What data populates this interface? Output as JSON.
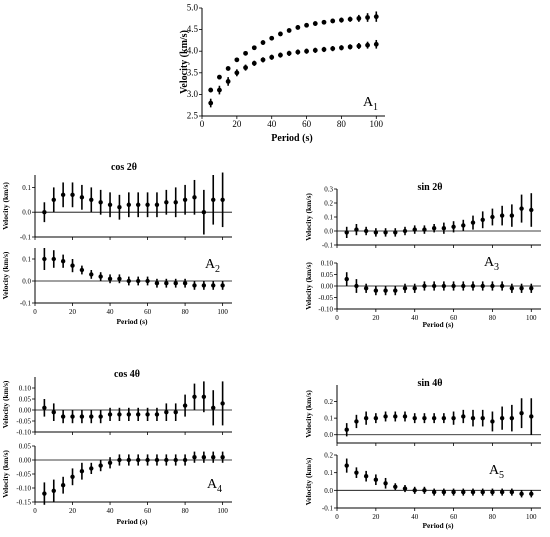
{
  "chart_data": [
    {
      "type": "scatter",
      "id": "A1",
      "title": "",
      "panel_label": "A",
      "panel_sub": "1",
      "xlabel": "Period (s)",
      "ylabel": "Velocity (km/s)",
      "xlim": [
        0,
        105
      ],
      "ylim": [
        2.5,
        5.0
      ],
      "xticks": [
        "0",
        "20",
        "40",
        "60",
        "80",
        "100"
      ],
      "yticks": [
        "2.5",
        "3.0",
        "3.5",
        "4.0",
        "4.5",
        "5.0"
      ],
      "series": [
        {
          "x": [
            5,
            10,
            15,
            20,
            25,
            30,
            35,
            40,
            45,
            50,
            55,
            60,
            65,
            70,
            75,
            80,
            85,
            90,
            95,
            100
          ],
          "y": [
            3.1,
            3.4,
            3.6,
            3.8,
            3.95,
            4.08,
            4.2,
            4.3,
            4.4,
            4.48,
            4.55,
            4.6,
            4.64,
            4.67,
            4.7,
            4.72,
            4.74,
            4.76,
            4.78,
            4.8
          ],
          "err": [
            0.05,
            0.05,
            0.05,
            0.05,
            0.05,
            0.05,
            0.05,
            0.05,
            0.05,
            0.05,
            0.05,
            0.05,
            0.05,
            0.05,
            0.05,
            0.06,
            0.06,
            0.08,
            0.1,
            0.12
          ]
        },
        {
          "x": [
            5,
            10,
            15,
            20,
            25,
            30,
            35,
            40,
            45,
            50,
            55,
            60,
            65,
            70,
            75,
            80,
            85,
            90,
            95,
            100
          ],
          "y": [
            2.8,
            3.1,
            3.3,
            3.5,
            3.62,
            3.72,
            3.8,
            3.86,
            3.91,
            3.95,
            3.98,
            4.0,
            4.02,
            4.04,
            4.06,
            4.08,
            4.1,
            4.12,
            4.14,
            4.16
          ],
          "err": [
            0.1,
            0.1,
            0.1,
            0.08,
            0.07,
            0.06,
            0.06,
            0.06,
            0.06,
            0.06,
            0.06,
            0.06,
            0.06,
            0.06,
            0.06,
            0.06,
            0.06,
            0.07,
            0.08,
            0.1
          ]
        }
      ]
    },
    {
      "type": "scatter",
      "id": "A2",
      "title": "cos 2θ",
      "panel_label": "A",
      "panel_sub": "2",
      "xlabel": "Period (s)",
      "ylabel": "Velocity (km/s)",
      "xlim": [
        0,
        105
      ],
      "xticks": [
        "0",
        "20",
        "40",
        "60",
        "80",
        "100"
      ],
      "top": {
        "ylim": [
          -0.1,
          0.15
        ],
        "yticks": [
          "-0.1",
          "0.0",
          "0.1"
        ],
        "x": [
          5,
          10,
          15,
          20,
          25,
          30,
          35,
          40,
          45,
          50,
          55,
          60,
          65,
          70,
          75,
          80,
          85,
          90,
          95,
          100
        ],
        "y": [
          0.0,
          0.05,
          0.07,
          0.07,
          0.06,
          0.05,
          0.04,
          0.03,
          0.02,
          0.03,
          0.03,
          0.03,
          0.03,
          0.04,
          0.04,
          0.05,
          0.06,
          0.0,
          0.05,
          0.05
        ],
        "err": [
          0.04,
          0.05,
          0.05,
          0.05,
          0.05,
          0.05,
          0.05,
          0.05,
          0.05,
          0.05,
          0.05,
          0.05,
          0.05,
          0.05,
          0.06,
          0.06,
          0.07,
          0.09,
          0.1,
          0.11
        ]
      },
      "bottom": {
        "ylim": [
          -0.1,
          0.15
        ],
        "yticks": [
          "-0.1",
          "0.0",
          "0.1"
        ],
        "x": [
          5,
          10,
          15,
          20,
          25,
          30,
          35,
          40,
          45,
          50,
          55,
          60,
          65,
          70,
          75,
          80,
          85,
          90,
          95,
          100
        ],
        "y": [
          0.1,
          0.1,
          0.09,
          0.07,
          0.05,
          0.03,
          0.02,
          0.01,
          0.01,
          0.0,
          0.0,
          0.0,
          -0.01,
          -0.01,
          -0.01,
          -0.01,
          -0.02,
          -0.02,
          -0.02,
          -0.02
        ],
        "err": [
          0.05,
          0.04,
          0.03,
          0.03,
          0.02,
          0.02,
          0.02,
          0.02,
          0.02,
          0.02,
          0.02,
          0.02,
          0.02,
          0.02,
          0.02,
          0.02,
          0.02,
          0.02,
          0.02,
          0.02
        ]
      }
    },
    {
      "type": "scatter",
      "id": "A3",
      "title": "sin 2θ",
      "panel_label": "A",
      "panel_sub": "3",
      "xlabel": "Period (s)",
      "ylabel": "Velocity (km/s)",
      "xlim": [
        0,
        105
      ],
      "xticks": [
        "0",
        "20",
        "40",
        "60",
        "80",
        "100"
      ],
      "top": {
        "ylim": [
          -0.1,
          0.3
        ],
        "yticks": [
          "-0.1",
          "0.0",
          "0.1",
          "0.2",
          "0.3"
        ],
        "x": [
          5,
          10,
          15,
          20,
          25,
          30,
          35,
          40,
          45,
          50,
          55,
          60,
          65,
          70,
          75,
          80,
          85,
          90,
          95,
          100
        ],
        "y": [
          -0.01,
          0.01,
          0.0,
          -0.01,
          -0.01,
          -0.01,
          0.0,
          0.01,
          0.01,
          0.02,
          0.02,
          0.03,
          0.04,
          0.06,
          0.08,
          0.1,
          0.11,
          0.11,
          0.16,
          0.15
        ],
        "err": [
          0.04,
          0.04,
          0.03,
          0.03,
          0.03,
          0.03,
          0.03,
          0.03,
          0.03,
          0.03,
          0.04,
          0.04,
          0.04,
          0.05,
          0.06,
          0.06,
          0.07,
          0.08,
          0.1,
          0.12
        ]
      },
      "bottom": {
        "ylim": [
          -0.1,
          0.1
        ],
        "yticks": [
          "-0.10",
          "-0.05",
          "0.00",
          "0.05",
          "0.10"
        ],
        "x": [
          5,
          10,
          15,
          20,
          25,
          30,
          35,
          40,
          45,
          50,
          55,
          60,
          65,
          70,
          75,
          80,
          85,
          90,
          95,
          100
        ],
        "y": [
          0.03,
          0.0,
          -0.01,
          -0.02,
          -0.02,
          -0.02,
          -0.01,
          -0.01,
          0.0,
          0.0,
          0.0,
          0.0,
          0.0,
          0.0,
          0.0,
          0.0,
          0.0,
          -0.01,
          -0.01,
          -0.01
        ],
        "err": [
          0.03,
          0.03,
          0.02,
          0.02,
          0.02,
          0.02,
          0.02,
          0.02,
          0.02,
          0.02,
          0.02,
          0.02,
          0.02,
          0.02,
          0.02,
          0.02,
          0.02,
          0.02,
          0.02,
          0.02
        ]
      }
    },
    {
      "type": "scatter",
      "id": "A4",
      "title": "cos 4θ",
      "panel_label": "A",
      "panel_sub": "4",
      "xlabel": "Period (s)",
      "ylabel": "Velocity (km/s)",
      "xlim": [
        0,
        105
      ],
      "xticks": [
        "0",
        "20",
        "40",
        "60",
        "80",
        "100"
      ],
      "top": {
        "ylim": [
          -0.1,
          0.15
        ],
        "yticks": [
          "-0.10",
          "-0.05",
          "0.00",
          "0.05",
          "0.10"
        ],
        "x": [
          5,
          10,
          15,
          20,
          25,
          30,
          35,
          40,
          45,
          50,
          55,
          60,
          65,
          70,
          75,
          80,
          85,
          90,
          95,
          100
        ],
        "y": [
          0.01,
          -0.01,
          -0.03,
          -0.03,
          -0.03,
          -0.03,
          -0.03,
          -0.02,
          -0.02,
          -0.02,
          -0.02,
          -0.02,
          -0.02,
          -0.01,
          -0.01,
          0.02,
          0.06,
          0.06,
          0.01,
          0.03
        ],
        "err": [
          0.04,
          0.04,
          0.03,
          0.03,
          0.03,
          0.03,
          0.03,
          0.03,
          0.03,
          0.03,
          0.03,
          0.03,
          0.03,
          0.04,
          0.04,
          0.05,
          0.06,
          0.07,
          0.08,
          0.1
        ]
      },
      "bottom": {
        "ylim": [
          -0.15,
          0.05
        ],
        "yticks": [
          "-0.15",
          "-0.10",
          "-0.05",
          "0.00",
          "0.05"
        ],
        "x": [
          5,
          10,
          15,
          20,
          25,
          30,
          35,
          40,
          45,
          50,
          55,
          60,
          65,
          70,
          75,
          80,
          85,
          90,
          95,
          100
        ],
        "y": [
          -0.12,
          -0.11,
          -0.09,
          -0.06,
          -0.04,
          -0.03,
          -0.02,
          -0.01,
          0.0,
          0.0,
          0.0,
          0.0,
          0.0,
          0.0,
          0.0,
          0.0,
          0.01,
          0.01,
          0.01,
          0.01
        ],
        "err": [
          0.04,
          0.04,
          0.03,
          0.03,
          0.03,
          0.02,
          0.02,
          0.02,
          0.02,
          0.02,
          0.02,
          0.02,
          0.02,
          0.02,
          0.02,
          0.02,
          0.02,
          0.02,
          0.02,
          0.02
        ]
      }
    },
    {
      "type": "scatter",
      "id": "A5",
      "title": "sin 4θ",
      "panel_label": "A",
      "panel_sub": "5",
      "xlabel": "Period (s)",
      "ylabel": "Velocity (km/s)",
      "xlim": [
        0,
        105
      ],
      "xticks": [
        "0",
        "20",
        "40",
        "60",
        "80",
        "100"
      ],
      "top": {
        "ylim": [
          -0.05,
          0.3
        ],
        "yticks": [
          "0.0",
          "0.1",
          "0.2"
        ],
        "x": [
          5,
          10,
          15,
          20,
          25,
          30,
          35,
          40,
          45,
          50,
          55,
          60,
          65,
          70,
          75,
          80,
          85,
          90,
          95,
          100
        ],
        "y": [
          0.03,
          0.08,
          0.1,
          0.1,
          0.11,
          0.11,
          0.11,
          0.1,
          0.1,
          0.1,
          0.1,
          0.1,
          0.11,
          0.1,
          0.1,
          0.08,
          0.1,
          0.1,
          0.13,
          0.11
        ],
        "err": [
          0.04,
          0.04,
          0.04,
          0.03,
          0.03,
          0.03,
          0.03,
          0.03,
          0.03,
          0.03,
          0.03,
          0.04,
          0.04,
          0.05,
          0.05,
          0.06,
          0.07,
          0.08,
          0.09,
          0.11
        ]
      },
      "bottom": {
        "ylim": [
          -0.1,
          0.2
        ],
        "yticks": [
          "-0.1",
          "0.0",
          "0.1",
          "0.2"
        ],
        "x": [
          5,
          10,
          15,
          20,
          25,
          30,
          35,
          40,
          45,
          50,
          55,
          60,
          65,
          70,
          75,
          80,
          85,
          90,
          95,
          100
        ],
        "y": [
          0.14,
          0.1,
          0.08,
          0.06,
          0.04,
          0.02,
          0.01,
          0.0,
          0.0,
          -0.01,
          -0.01,
          -0.01,
          -0.01,
          -0.01,
          -0.01,
          -0.01,
          -0.01,
          -0.01,
          -0.02,
          -0.02
        ],
        "err": [
          0.04,
          0.03,
          0.03,
          0.03,
          0.03,
          0.02,
          0.02,
          0.02,
          0.02,
          0.02,
          0.02,
          0.02,
          0.02,
          0.02,
          0.02,
          0.02,
          0.02,
          0.02,
          0.02,
          0.02
        ]
      }
    }
  ]
}
